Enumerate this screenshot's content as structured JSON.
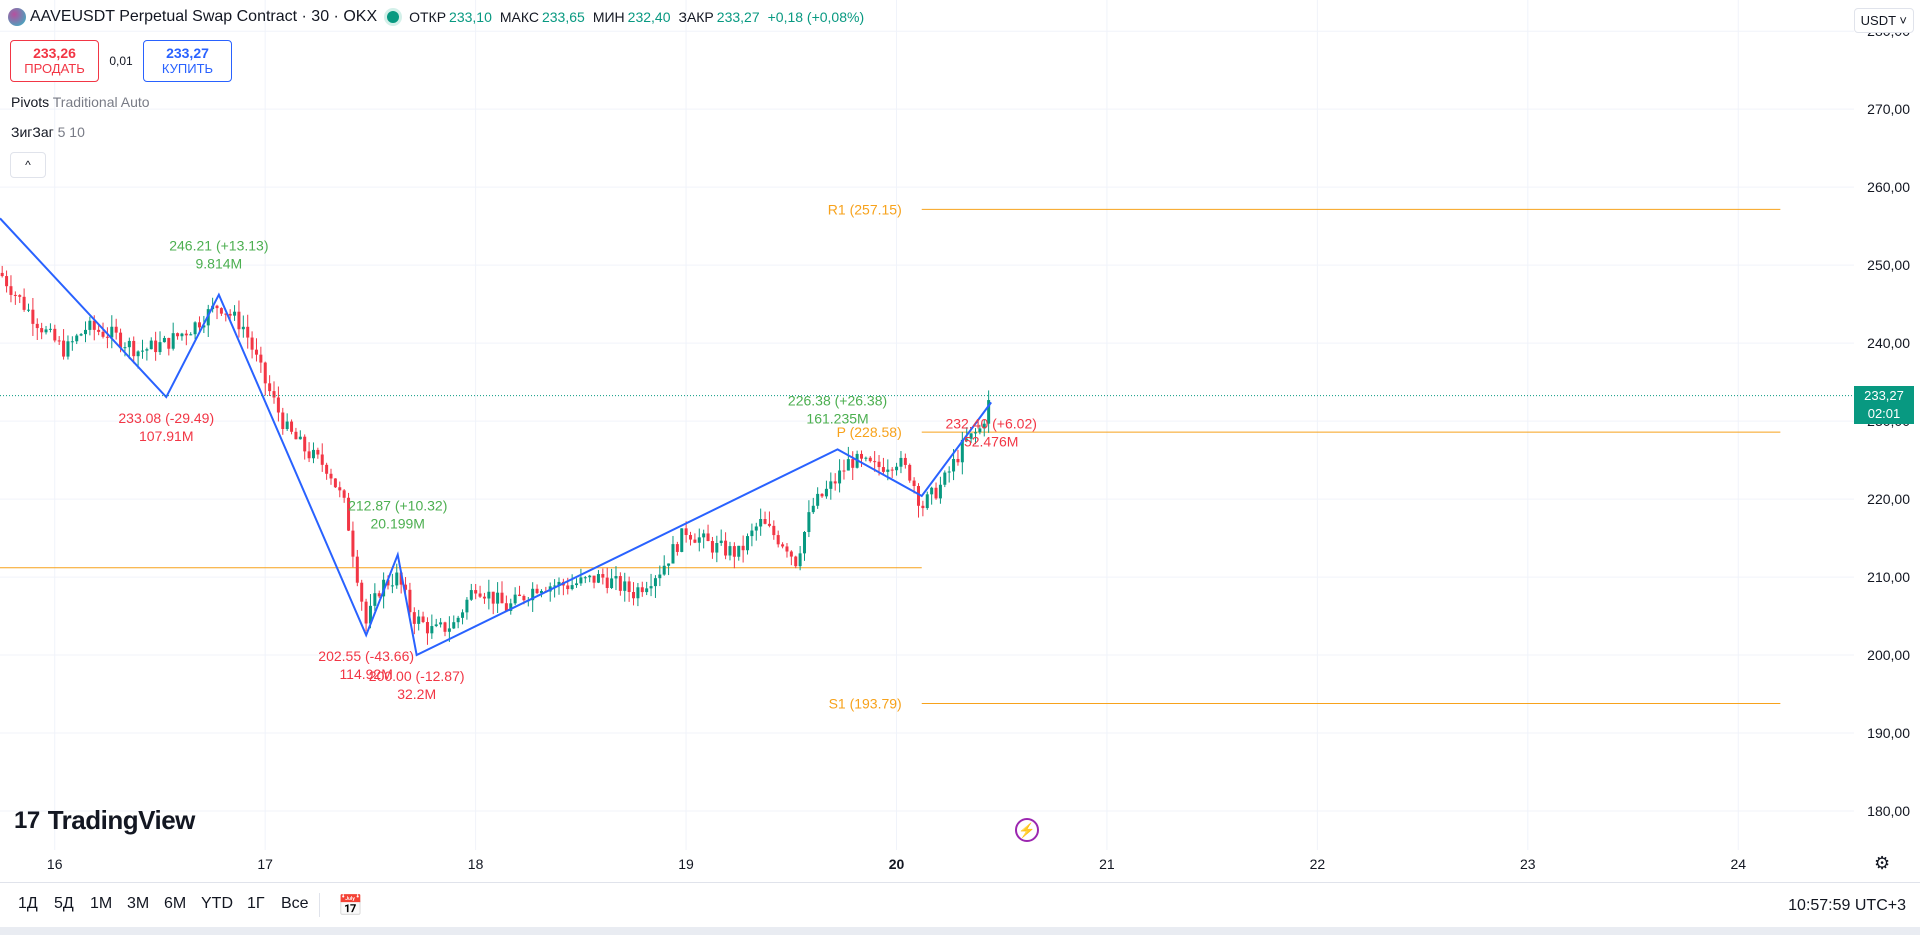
{
  "header": {
    "symbol": "AAVEUSDT Perpetual Swap Contract · 30 · OKX",
    "ohlc": [
      {
        "key": "ОТКР",
        "value": "233,10"
      },
      {
        "key": "МАКС",
        "value": "233,65"
      },
      {
        "key": "МИН",
        "value": "232,40"
      },
      {
        "key": "ЗАКР",
        "value": "233,27"
      }
    ],
    "change": "+0,18 (+0,08%)",
    "currency_button": "USDT ˅"
  },
  "trade": {
    "sell_price": "233,26",
    "sell_label": "ПРОДАТЬ",
    "spread": "0,01",
    "buy_price": "233,27",
    "buy_label": "КУПИТЬ"
  },
  "indicators": [
    {
      "name": "Pivots",
      "params": "Traditional Auto"
    },
    {
      "name": "ЗигЗаг",
      "params": "5 10"
    }
  ],
  "collapse_icon": "^",
  "last_price_tag": {
    "price": "233,27",
    "countdown": "02:01",
    "color": "#089981"
  },
  "branding": {
    "mark": "17",
    "name": "TradingView"
  },
  "bottom_bar": {
    "ranges": [
      "1Д",
      "5Д",
      "1М",
      "3М",
      "6М",
      "YTD",
      "1Г",
      "Все"
    ],
    "clock": "10:57:59 UTC+3"
  },
  "chart_data": {
    "type": "candlestick",
    "ylim": [
      175,
      284
    ],
    "xlim": [
      15.74,
      24.55
    ],
    "y_ticks": [
      {
        "v": 180,
        "label": "180,00"
      },
      {
        "v": 190,
        "label": "190,00"
      },
      {
        "v": 200,
        "label": "200,00"
      },
      {
        "v": 210,
        "label": "210,00"
      },
      {
        "v": 220,
        "label": "220,00"
      },
      {
        "v": 230,
        "label": "230,00"
      },
      {
        "v": 240,
        "label": "240,00"
      },
      {
        "v": 250,
        "label": "250,00"
      },
      {
        "v": 260,
        "label": "260,00"
      },
      {
        "v": 270,
        "label": "270,00"
      },
      {
        "v": 280,
        "label": "280,00"
      }
    ],
    "x_ticks": [
      {
        "v": 16,
        "label": "16",
        "bold": false
      },
      {
        "v": 17,
        "label": "17",
        "bold": false
      },
      {
        "v": 18,
        "label": "18",
        "bold": false
      },
      {
        "v": 19,
        "label": "19",
        "bold": false
      },
      {
        "v": 20,
        "label": "20",
        "bold": true
      },
      {
        "v": 21,
        "label": "21",
        "bold": false
      },
      {
        "v": 22,
        "label": "22",
        "bold": false
      },
      {
        "v": 23,
        "label": "23",
        "bold": false
      },
      {
        "v": 24,
        "label": "24",
        "bold": false
      }
    ],
    "colors": {
      "up": "#089981",
      "down": "#f23645",
      "zigzag": "#2962ff",
      "pivot": "#f7a21b"
    },
    "last_price": 233.27,
    "pivots": [
      {
        "label": "R1 (257.15)",
        "value": 257.15,
        "x_start": 20.12,
        "x_end": 24.2
      },
      {
        "label": "P (228.58)",
        "value": 228.58,
        "x_start": 20.12,
        "x_end": 24.2
      },
      {
        "label": "S1 (193.79)",
        "value": 193.79,
        "x_start": 20.12,
        "x_end": 24.2
      },
      {
        "label": "",
        "value": 211.2,
        "x_start": 15.74,
        "x_end": 20.12
      }
    ],
    "zigzag": [
      {
        "x": 15.74,
        "y": 256
      },
      {
        "x": 16.53,
        "y": 233.08,
        "label": "233.08 (-29.49)",
        "volume": "107.91M",
        "pos": "below",
        "dir": "down"
      },
      {
        "x": 16.78,
        "y": 246.21,
        "label": "246.21 (+13.13)",
        "volume": "9.814M",
        "pos": "above",
        "dir": "up"
      },
      {
        "x": 17.48,
        "y": 202.55,
        "label": "202.55 (-43.66)",
        "volume": "114.92M",
        "pos": "below",
        "dir": "down"
      },
      {
        "x": 17.63,
        "y": 212.87,
        "label": "212.87 (+10.32)",
        "volume": "20.199M",
        "pos": "above",
        "dir": "up"
      },
      {
        "x": 17.72,
        "y": 200.0,
        "label": "200.00 (-12.87)",
        "volume": "32.2M",
        "pos": "below",
        "dir": "down"
      },
      {
        "x": 19.72,
        "y": 226.38,
        "label": "226.38 (+26.38)",
        "volume": "161.235M",
        "pos": "above",
        "dir": "up"
      },
      {
        "x": 20.12,
        "y": 220.4
      },
      {
        "x": 20.45,
        "y": 232.4,
        "label": "232.40 (+6.02)",
        "volume": "52.476M",
        "pos": "below",
        "dir": "down"
      }
    ],
    "candles_close_path": [
      {
        "x": 15.74,
        "y": 249
      },
      {
        "x": 15.85,
        "y": 245
      },
      {
        "x": 15.97,
        "y": 241
      },
      {
        "x": 16.05,
        "y": 239
      },
      {
        "x": 16.15,
        "y": 242
      },
      {
        "x": 16.28,
        "y": 241
      },
      {
        "x": 16.4,
        "y": 239
      },
      {
        "x": 16.53,
        "y": 240
      },
      {
        "x": 16.65,
        "y": 242
      },
      {
        "x": 16.78,
        "y": 245
      },
      {
        "x": 16.9,
        "y": 242
      },
      {
        "x": 17.0,
        "y": 235
      },
      {
        "x": 17.1,
        "y": 229
      },
      {
        "x": 17.2,
        "y": 226
      },
      {
        "x": 17.3,
        "y": 224
      },
      {
        "x": 17.38,
        "y": 219
      },
      {
        "x": 17.48,
        "y": 204
      },
      {
        "x": 17.55,
        "y": 209
      },
      {
        "x": 17.63,
        "y": 210
      },
      {
        "x": 17.7,
        "y": 205
      },
      {
        "x": 17.8,
        "y": 203
      },
      {
        "x": 17.9,
        "y": 204
      },
      {
        "x": 18.0,
        "y": 209
      },
      {
        "x": 18.15,
        "y": 206
      },
      {
        "x": 18.3,
        "y": 209
      },
      {
        "x": 18.45,
        "y": 209
      },
      {
        "x": 18.6,
        "y": 210
      },
      {
        "x": 18.75,
        "y": 208
      },
      {
        "x": 18.88,
        "y": 211
      },
      {
        "x": 19.0,
        "y": 216
      },
      {
        "x": 19.12,
        "y": 214
      },
      {
        "x": 19.25,
        "y": 213
      },
      {
        "x": 19.35,
        "y": 217
      },
      {
        "x": 19.48,
        "y": 214
      },
      {
        "x": 19.52,
        "y": 212
      },
      {
        "x": 19.6,
        "y": 219
      },
      {
        "x": 19.7,
        "y": 222
      },
      {
        "x": 19.78,
        "y": 225
      },
      {
        "x": 19.9,
        "y": 224
      },
      {
        "x": 20.0,
        "y": 225
      },
      {
        "x": 20.07,
        "y": 223
      },
      {
        "x": 20.12,
        "y": 219
      },
      {
        "x": 20.22,
        "y": 222
      },
      {
        "x": 20.32,
        "y": 227
      },
      {
        "x": 20.4,
        "y": 229
      },
      {
        "x": 20.45,
        "y": 233.27
      }
    ]
  }
}
